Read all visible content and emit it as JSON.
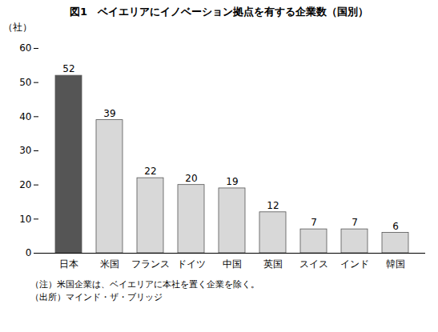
{
  "chart_data": {
    "type": "bar",
    "title": "図1　ベイエリアにイノベーション拠点を有する企業数（国別）",
    "ylabel": "（社）",
    "categories": [
      "日本",
      "米国",
      "フランス",
      "ドイツ",
      "中国",
      "英国",
      "スイス",
      "インド",
      "韓国"
    ],
    "values": [
      52,
      39,
      22,
      20,
      19,
      12,
      7,
      7,
      6
    ],
    "colors": [
      "#555555",
      "#d8d8d8",
      "#d8d8d8",
      "#d8d8d8",
      "#d8d8d8",
      "#d8d8d8",
      "#d8d8d8",
      "#d8d8d8",
      "#d8d8d8"
    ],
    "ylim": [
      0,
      60
    ],
    "yticks": [
      0,
      10,
      20,
      30,
      40,
      50,
      60
    ],
    "grid": false,
    "data_labels": true,
    "annotations": [
      "（注）米国企業は、ベイエリアに本社を置く企業を除く。",
      "（出所）マインド・ザ・ブリッジ"
    ]
  }
}
